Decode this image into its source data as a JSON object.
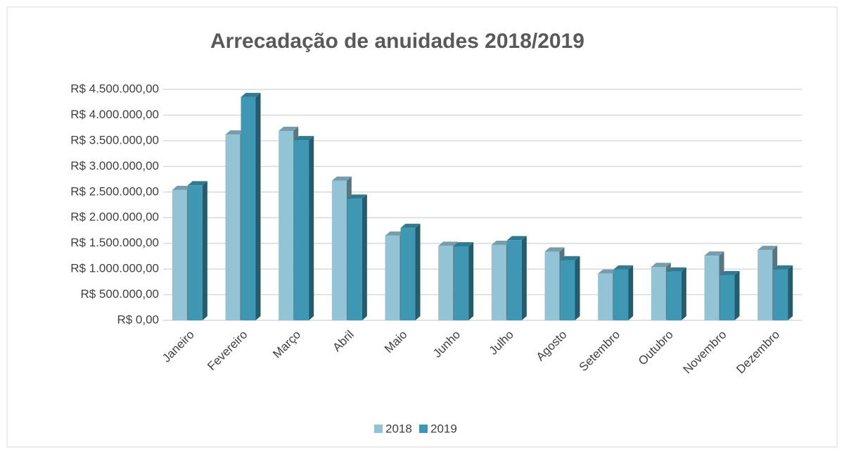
{
  "chart_data": {
    "type": "bar3d",
    "title": "Arrecadação de anuidades 2018/2019",
    "categories": [
      "Janeiro",
      "Fevereiro",
      "Março",
      "Abril",
      "Maio",
      "Junho",
      "Julho",
      "Agosto",
      "Setembro",
      "Outubro",
      "Novembro",
      "Dezembro"
    ],
    "series": [
      {
        "name": "2018",
        "color": "#93c4d6",
        "values": [
          2540000,
          3620000,
          3690000,
          2720000,
          1650000,
          1450000,
          1470000,
          1340000,
          910000,
          1040000,
          1260000,
          1370000
        ]
      },
      {
        "name": "2019",
        "color": "#3e98b3",
        "values": [
          2630000,
          4350000,
          3510000,
          2370000,
          1800000,
          1440000,
          1560000,
          1170000,
          990000,
          950000,
          880000,
          990000
        ]
      }
    ],
    "ylim": [
      0,
      4500000
    ],
    "yticks": [
      {
        "value": 0,
        "label": "R$ 0,00"
      },
      {
        "value": 500000,
        "label": "R$ 500.000,00"
      },
      {
        "value": 1000000,
        "label": "R$ 1.000.000,00"
      },
      {
        "value": 1500000,
        "label": "R$ 1.500.000,00"
      },
      {
        "value": 2000000,
        "label": "R$ 2.000.000,00"
      },
      {
        "value": 2500000,
        "label": "R$ 2.500.000,00"
      },
      {
        "value": 3000000,
        "label": "R$ 3.000.000,00"
      },
      {
        "value": 3500000,
        "label": "R$ 3.500.000,00"
      },
      {
        "value": 4000000,
        "label": "R$ 4.000.000,00"
      },
      {
        "value": 4500000,
        "label": "R$ 4.500.000,00"
      }
    ],
    "grid": true,
    "legend": "bottom"
  }
}
